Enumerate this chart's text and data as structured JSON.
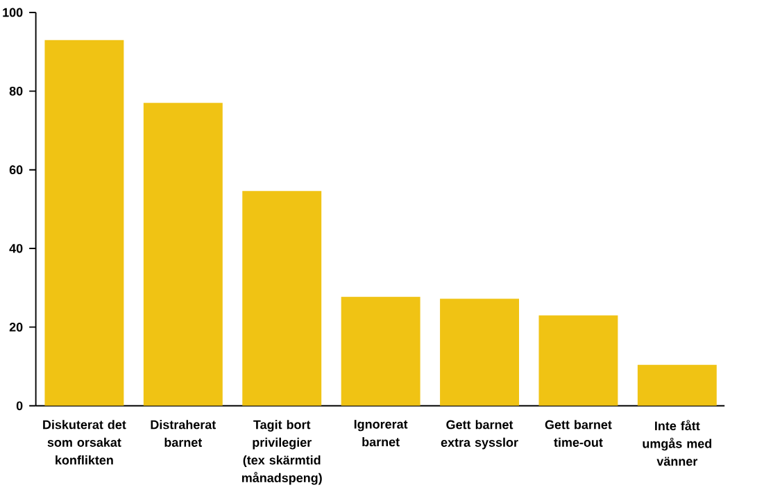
{
  "chart_data": {
    "type": "bar",
    "categories": [
      "Diskuterat det som orsakat konflikten",
      "Distraherat barnet",
      "Tagit bort privilegier (tex skärmtid månadspeng)",
      "Ignorerat barnet",
      "Gett barnet extra sysslor",
      "Gett barnet time-out",
      "Inte fått umgås med vänner"
    ],
    "values": [
      93.0,
      77.0,
      54.6,
      27.7,
      27.2,
      23.0,
      10.4
    ],
    "color": "#f0c314",
    "ylim": [
      0,
      100
    ],
    "yticks": [
      0,
      20,
      40,
      60,
      80,
      100
    ]
  }
}
